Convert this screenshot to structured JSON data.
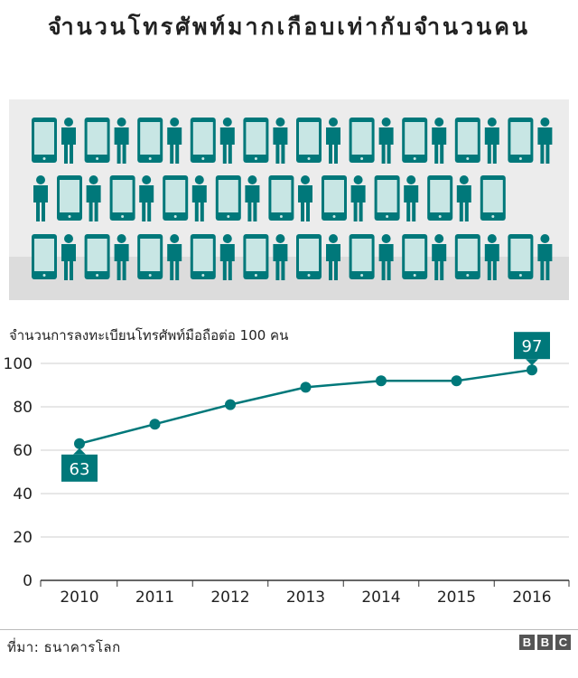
{
  "title": "จำนวนโทรศัพท์มากเกือบเท่ากับจำนวนคน",
  "source": "ที่มา: ธนาคารโลก",
  "logo": [
    "B",
    "B",
    "C"
  ],
  "colors": {
    "accent": "#00787a",
    "phone_screen": "#c8e6e4",
    "grid": "#cfcfcf",
    "axis": "#333333",
    "illustration_bg": "#ececec"
  },
  "icons": [
    "smartphone-icon",
    "person-icon"
  ],
  "chart_data": {
    "type": "line",
    "title": "จำนวนการลงทะเบียนโทรศัพท์มือถือต่อ 100 คน",
    "categories": [
      "2010",
      "2011",
      "2012",
      "2013",
      "2014",
      "2015",
      "2016"
    ],
    "series": [
      {
        "values": [
          63,
          72,
          81,
          89,
          92,
          92,
          97
        ]
      }
    ],
    "ylim": [
      0,
      100
    ],
    "yticks": [
      "0",
      "20",
      "40",
      "60",
      "80",
      "100"
    ],
    "annotations": [
      "63",
      "97"
    ],
    "grid": true,
    "legend": "none"
  }
}
